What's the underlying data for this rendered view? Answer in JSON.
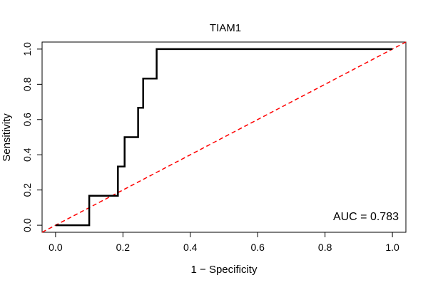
{
  "chart_data": {
    "type": "line",
    "title": "TIAM1",
    "xlabel": "1 − Specificity",
    "ylabel": "Sensitivity",
    "xlim": [
      -0.04,
      1.04
    ],
    "ylim": [
      -0.04,
      1.04
    ],
    "x_ticks": [
      0.0,
      0.2,
      0.4,
      0.6,
      0.8,
      1.0
    ],
    "x_tick_labels": [
      "0.0",
      "0.2",
      "0.4",
      "0.6",
      "0.8",
      "1.0"
    ],
    "y_ticks": [
      0.0,
      0.2,
      0.4,
      0.6,
      0.8,
      1.0
    ],
    "y_tick_labels": [
      "0.0",
      "0.2",
      "0.4",
      "0.6",
      "0.8",
      "1.0"
    ],
    "grid": false,
    "series": [
      {
        "name": "ROC curve",
        "color": "#000000",
        "style": "solid",
        "x": [
          0.0,
          0.1,
          0.1,
          0.185,
          0.185,
          0.205,
          0.205,
          0.245,
          0.245,
          0.26,
          0.26,
          0.3,
          0.3,
          1.0
        ],
        "y": [
          0.0,
          0.0,
          0.167,
          0.167,
          0.333,
          0.333,
          0.5,
          0.5,
          0.667,
          0.667,
          0.833,
          0.833,
          1.0,
          1.0
        ]
      },
      {
        "name": "chance line",
        "color": "#ff0000",
        "style": "dashed",
        "x": [
          -0.04,
          1.04
        ],
        "y": [
          -0.04,
          1.04
        ]
      }
    ],
    "annotation": "AUC = 0.783"
  }
}
